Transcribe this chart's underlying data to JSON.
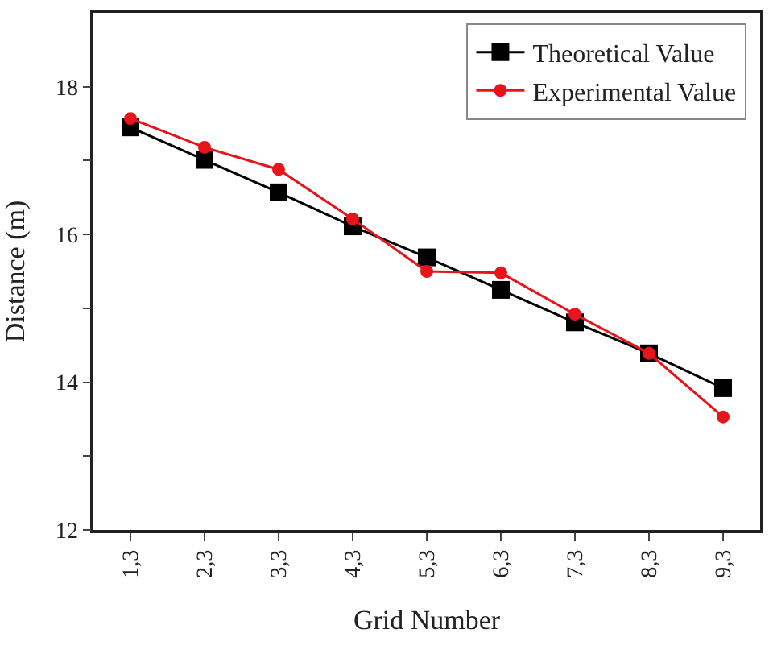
{
  "chart_data": {
    "type": "line",
    "xlabel": "Grid Number",
    "ylabel": "Distance (m)",
    "categories": [
      "1,3",
      "2,3",
      "3,3",
      "4,3",
      "5,3",
      "6,3",
      "7,3",
      "8,3",
      "9,3"
    ],
    "series": [
      {
        "name": "Theoretical Value",
        "color": "#000000",
        "marker": "square",
        "values": [
          17.45,
          17.01,
          16.57,
          16.11,
          15.69,
          15.25,
          14.81,
          14.39,
          13.92
        ]
      },
      {
        "name": "Experimental Value",
        "color": "#e8141c",
        "marker": "circle",
        "values": [
          17.57,
          17.18,
          16.88,
          16.21,
          15.5,
          15.48,
          14.92,
          14.39,
          13.53
        ]
      }
    ],
    "ylim": [
      12,
      19
    ],
    "yticks": [
      12,
      {
        "value": 13,
        "label": null
      },
      14,
      {
        "value": 15,
        "label": null
      },
      16,
      {
        "value": 17,
        "label": null
      },
      18
    ],
    "grid": false,
    "legend": "top right",
    "line_style": "solid"
  }
}
